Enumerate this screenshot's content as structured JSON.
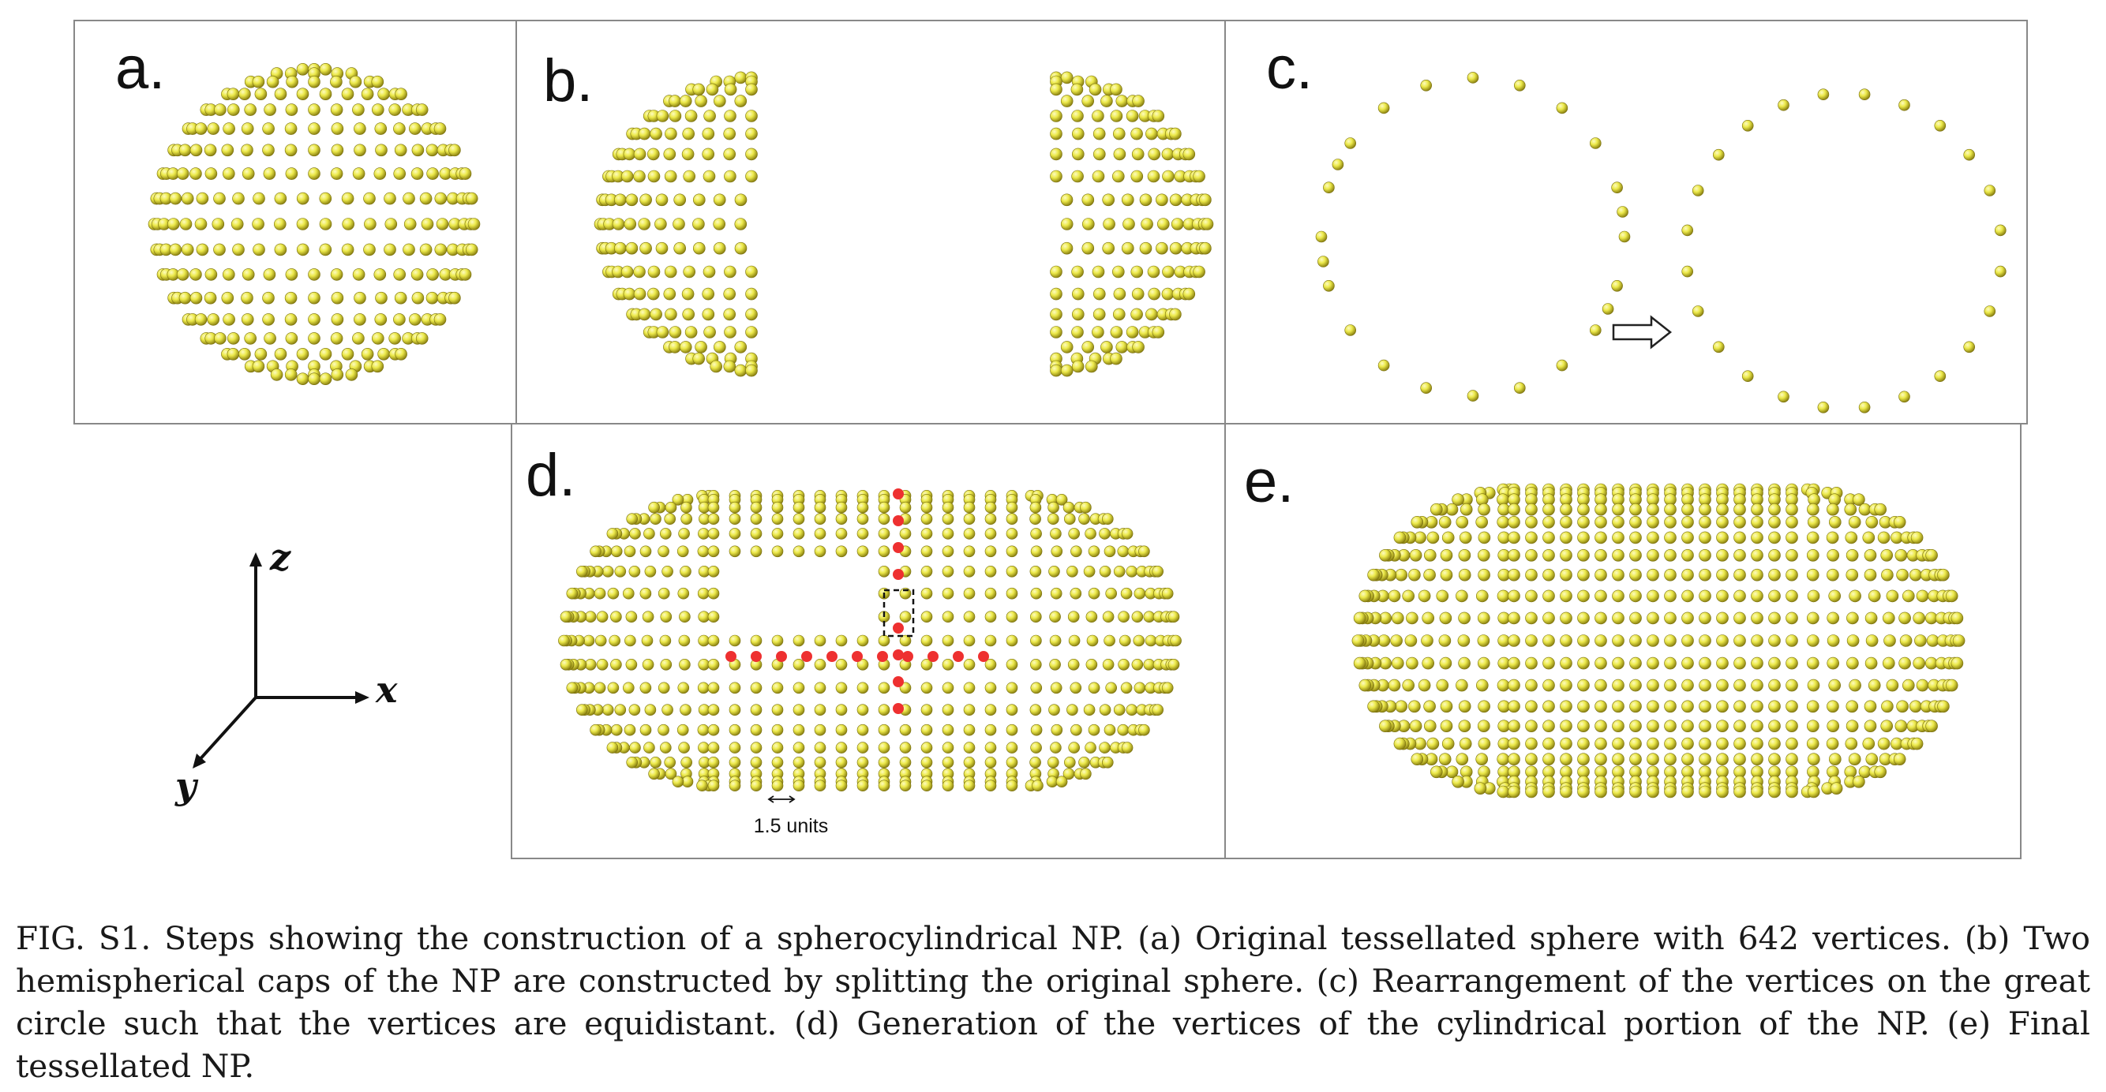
{
  "panels": {
    "a": {
      "label": "a."
    },
    "b": {
      "label": "b."
    },
    "c": {
      "label": "c."
    },
    "d": {
      "label": "d.",
      "scale_label": "1.5 units"
    },
    "e": {
      "label": "e."
    }
  },
  "axes": {
    "z": "z",
    "x": "x",
    "y": "y"
  },
  "caption": "FIG. S1. Steps showing the construction of a spherocylindrical NP. (a) Original tessellated sphere with 642 vertices. (b) Two hemispherical caps of the NP are constructed by splitting the original sphere. (c) Rearrangement of the vertices on the great circle such that the vertices are equidistant. (d) Generation of the vertices of the cylindrical portion of the NP. (e) Final tessellated NP.",
  "colors": {
    "bead": "#ece94a",
    "bead_highlight": "#fdfbb8",
    "bead_shadow": "#8a8010",
    "red_bead": "#ee3030",
    "frame": "#888888"
  }
}
